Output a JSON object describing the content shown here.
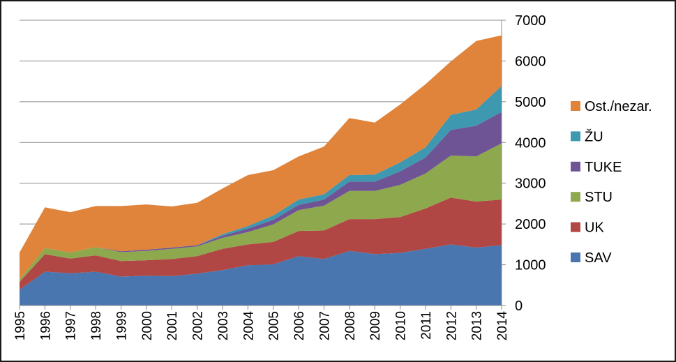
{
  "chart_data": {
    "type": "area",
    "stacked": true,
    "x": [
      "1995",
      "1996",
      "1997",
      "1998",
      "1999",
      "2000",
      "2001",
      "2002",
      "2003",
      "2004",
      "2005",
      "2006",
      "2007",
      "2008",
      "2009",
      "2010",
      "2011",
      "2012",
      "2013",
      "2014"
    ],
    "ylim": [
      0,
      7000
    ],
    "yticks": [
      "0",
      "1000",
      "2000",
      "3000",
      "4000",
      "5000",
      "6000",
      "7000"
    ],
    "y_axis_side": "right",
    "grid": true,
    "legend_position": "right",
    "series": [
      {
        "name": "SAV",
        "color": "#4a76b0",
        "values": [
          390,
          830,
          790,
          830,
          710,
          730,
          720,
          780,
          870,
          990,
          1010,
          1210,
          1140,
          1340,
          1260,
          1290,
          1390,
          1500,
          1420,
          1480
        ]
      },
      {
        "name": "UK",
        "color": "#b04744",
        "values": [
          190,
          430,
          360,
          400,
          380,
          380,
          420,
          430,
          520,
          510,
          550,
          620,
          700,
          780,
          860,
          880,
          990,
          1150,
          1130,
          1120
        ]
      },
      {
        "name": "STU",
        "color": "#8da84d",
        "values": [
          60,
          150,
          150,
          200,
          220,
          230,
          250,
          240,
          270,
          300,
          430,
          510,
          610,
          690,
          690,
          790,
          860,
          1030,
          1110,
          1380
        ]
      },
      {
        "name": "TUKE",
        "color": "#6e5495",
        "values": [
          0,
          0,
          0,
          0,
          20,
          30,
          30,
          30,
          50,
          90,
          110,
          130,
          150,
          230,
          230,
          330,
          390,
          630,
          750,
          770
        ]
      },
      {
        "name": "ŽU",
        "color": "#3e98b0",
        "values": [
          0,
          0,
          0,
          0,
          0,
          0,
          0,
          0,
          40,
          60,
          110,
          130,
          130,
          160,
          170,
          220,
          250,
          370,
          400,
          640
        ]
      },
      {
        "name": "Ost./nezar.",
        "color": "#e0843c",
        "values": [
          660,
          1000,
          990,
          1010,
          1110,
          1110,
          1010,
          1040,
          1120,
          1250,
          1110,
          1060,
          1170,
          1400,
          1280,
          1420,
          1550,
          1310,
          1680,
          1240
        ]
      }
    ]
  }
}
